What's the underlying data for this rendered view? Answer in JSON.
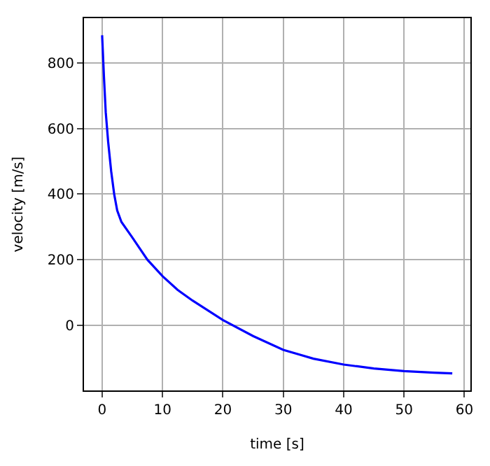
{
  "chart_data": {
    "type": "line",
    "xlabel": "time [s]",
    "ylabel": "velocity [m/s]",
    "series": [
      {
        "color": "#0000ff",
        "x": [
          0,
          0.3,
          0.6,
          1,
          1.5,
          2,
          2.5,
          3,
          3.2,
          5,
          7.5,
          10,
          12.5,
          15,
          20,
          25,
          30,
          35,
          40,
          45,
          50,
          55,
          58
        ],
        "values": [
          885,
          760,
          650,
          560,
          470,
          400,
          350,
          325,
          315,
          268,
          200,
          150,
          108,
          75,
          16,
          -33,
          -75,
          -102,
          -120,
          -132,
          -140,
          -145,
          -147
        ]
      }
    ],
    "xlim": [
      -3,
      61
    ],
    "ylim": [
      -199,
      937
    ],
    "xticks": [
      0,
      10,
      20,
      30,
      40,
      50,
      60
    ],
    "yticks": [
      0,
      200,
      400,
      600,
      800
    ],
    "grid": true,
    "marker": "none",
    "line_style": "solid"
  }
}
